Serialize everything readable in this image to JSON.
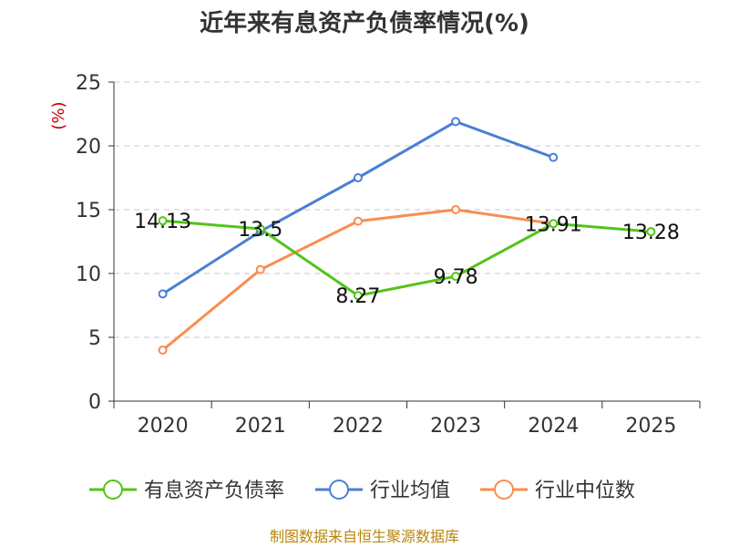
{
  "chart_data": {
    "type": "line",
    "title": "近年来有息资产负债率情况(%)",
    "ylabel": "(%)",
    "xlabel": "",
    "categories": [
      "2020",
      "2021",
      "2022",
      "2023",
      "2024",
      "2025"
    ],
    "ylim": [
      0,
      25
    ],
    "yticks": [
      0,
      5,
      10,
      15,
      20,
      25
    ],
    "grid": true,
    "legend_position": "bottom",
    "series": [
      {
        "name": "有息资产负债率",
        "color": "#52c41a",
        "values": [
          14.13,
          13.5,
          8.27,
          9.78,
          13.91,
          13.28
        ],
        "labels": [
          "14.13",
          "13.5",
          "8.27",
          "9.78",
          "13.91",
          "13.28"
        ]
      },
      {
        "name": "行业均值",
        "color": "#4a7fd6",
        "values": [
          8.4,
          13.3,
          17.5,
          21.9,
          19.1,
          null
        ]
      },
      {
        "name": "行业中位数",
        "color": "#fa8c50",
        "values": [
          4.0,
          10.3,
          14.1,
          15.0,
          13.9,
          null
        ]
      }
    ],
    "source": "制图数据来自恒生聚源数据库"
  }
}
